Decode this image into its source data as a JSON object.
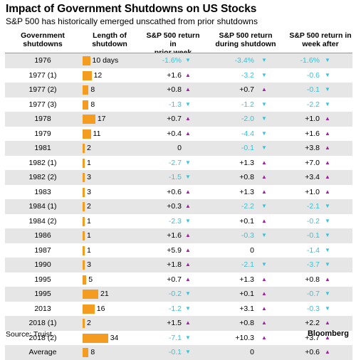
{
  "header": {
    "title": "Impact of Government Shutdowns on US Stocks",
    "subtitle": "S&P 500 has historically emerged unscathed from prior shutdowns"
  },
  "columns": {
    "gov": [
      "Government",
      "shutdowns"
    ],
    "len": [
      "Length of",
      "shutdown"
    ],
    "prior": [
      "S&P 500 return in",
      "prior week"
    ],
    "during": [
      "S&P 500 return",
      "during shutdown"
    ],
    "after": [
      "S&P 500 return in",
      "week after"
    ]
  },
  "colors": {
    "bar": "#f39c1f",
    "up": "#a020a0",
    "down": "#35c4d8",
    "shade": "#e6e6e6"
  },
  "icons": {
    "up": "up-triangle-icon",
    "down": "down-triangle-icon"
  },
  "chart_data": {
    "type": "table",
    "rows": [
      {
        "name": "1976",
        "length": 10,
        "length_label": "10 days",
        "prior": "-1.6%",
        "prior_dir": "down",
        "during": "-3.4%",
        "during_dir": "down",
        "after": "-1.6%",
        "after_dir": "down"
      },
      {
        "name": "1977 (1)",
        "length": 12,
        "length_label": "12",
        "prior": "+1.6",
        "prior_dir": "up",
        "during": "-3.2",
        "during_dir": "down",
        "after": "-0.6",
        "after_dir": "down"
      },
      {
        "name": "1977 (2)",
        "length": 8,
        "length_label": "8",
        "prior": "+0.8",
        "prior_dir": "up",
        "during": "+0.7",
        "during_dir": "up",
        "after": "-0.1",
        "after_dir": "down"
      },
      {
        "name": "1977 (3)",
        "length": 8,
        "length_label": "8",
        "prior": "-1.3",
        "prior_dir": "down",
        "during": "-1.2",
        "during_dir": "down",
        "after": "-2.2",
        "after_dir": "down"
      },
      {
        "name": "1978",
        "length": 17,
        "length_label": "17",
        "prior": "+0.7",
        "prior_dir": "up",
        "during": "-2.0",
        "during_dir": "down",
        "after": "+1.0",
        "after_dir": "up"
      },
      {
        "name": "1979",
        "length": 11,
        "length_label": "11",
        "prior": "+0.4",
        "prior_dir": "up",
        "during": "-4.4",
        "during_dir": "down",
        "after": "+1.6",
        "after_dir": "up"
      },
      {
        "name": "1981",
        "length": 2,
        "length_label": "2",
        "prior": "0",
        "prior_dir": "",
        "during": "-0.1",
        "during_dir": "down",
        "after": "+3.8",
        "after_dir": "up"
      },
      {
        "name": "1982 (1)",
        "length": 1,
        "length_label": "1",
        "prior": "-2.7",
        "prior_dir": "down",
        "during": "+1.3",
        "during_dir": "up",
        "after": "+7.0",
        "after_dir": "up"
      },
      {
        "name": "1982 (2)",
        "length": 3,
        "length_label": "3",
        "prior": "-1.5",
        "prior_dir": "down",
        "during": "+0.8",
        "during_dir": "up",
        "after": "+3.4",
        "after_dir": "up"
      },
      {
        "name": "1983",
        "length": 3,
        "length_label": "3",
        "prior": "+0.6",
        "prior_dir": "up",
        "during": "+1.3",
        "during_dir": "up",
        "after": "+1.0",
        "after_dir": "up"
      },
      {
        "name": "1984 (1)",
        "length": 2,
        "length_label": "2",
        "prior": "+0.3",
        "prior_dir": "up",
        "during": "-2.2",
        "during_dir": "down",
        "after": "-2.1",
        "after_dir": "down"
      },
      {
        "name": "1984 (2)",
        "length": 1,
        "length_label": "1",
        "prior": "-2.3",
        "prior_dir": "down",
        "during": "+0.1",
        "during_dir": "up",
        "after": "-0.2",
        "after_dir": "down"
      },
      {
        "name": "1986",
        "length": 1,
        "length_label": "1",
        "prior": "+1.6",
        "prior_dir": "up",
        "during": "-0.3",
        "during_dir": "down",
        "after": "-0.1",
        "after_dir": "down"
      },
      {
        "name": "1987",
        "length": 1,
        "length_label": "1",
        "prior": "+5.9",
        "prior_dir": "up",
        "during": "0",
        "during_dir": "",
        "after": "-1.4",
        "after_dir": "down"
      },
      {
        "name": "1990",
        "length": 3,
        "length_label": "3",
        "prior": "+1.8",
        "prior_dir": "up",
        "during": "-2.1",
        "during_dir": "down",
        "after": "-3.7",
        "after_dir": "down"
      },
      {
        "name": "1995",
        "length": 5,
        "length_label": "5",
        "prior": "+0.7",
        "prior_dir": "up",
        "during": "+1.3",
        "during_dir": "up",
        "after": "+0.8",
        "after_dir": "up"
      },
      {
        "name": "1995",
        "length": 21,
        "length_label": "21",
        "prior": "-0.2",
        "prior_dir": "down",
        "during": "+0.1",
        "during_dir": "up",
        "after": "-0.7",
        "after_dir": "down"
      },
      {
        "name": "2013",
        "length": 16,
        "length_label": "16",
        "prior": "-1.2",
        "prior_dir": "down",
        "during": "+3.1",
        "during_dir": "up",
        "after": "-0.3",
        "after_dir": "down"
      },
      {
        "name": "2018 (1)",
        "length": 2,
        "length_label": "2",
        "prior": "+1.5",
        "prior_dir": "up",
        "during": "+0.8",
        "during_dir": "up",
        "after": "+2.2",
        "after_dir": "up"
      },
      {
        "name": "2018 (2)",
        "length": 34,
        "length_label": "34",
        "prior": "-7.1",
        "prior_dir": "down",
        "during": "+10.3",
        "during_dir": "up",
        "after": "+3.7",
        "after_dir": "up"
      },
      {
        "name": "Average",
        "length": 8,
        "length_label": "8",
        "prior": "-0.1",
        "prior_dir": "down",
        "during": "0",
        "during_dir": "",
        "after": "+0.6",
        "after_dir": "up"
      }
    ]
  },
  "footer": {
    "source": "Source: Truist",
    "brand": "Bloomberg"
  }
}
